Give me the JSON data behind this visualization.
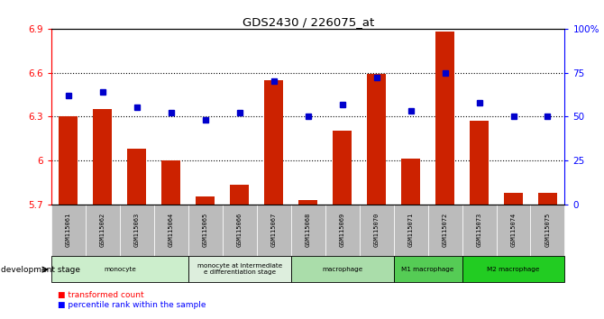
{
  "title": "GDS2430 / 226075_at",
  "samples": [
    "GSM115061",
    "GSM115062",
    "GSM115063",
    "GSM115064",
    "GSM115065",
    "GSM115066",
    "GSM115067",
    "GSM115068",
    "GSM115069",
    "GSM115070",
    "GSM115071",
    "GSM115072",
    "GSM115073",
    "GSM115074",
    "GSM115075"
  ],
  "red_values": [
    6.3,
    6.35,
    6.08,
    6.0,
    5.75,
    5.83,
    6.55,
    5.73,
    6.2,
    6.59,
    6.01,
    6.88,
    6.27,
    5.78,
    5.78
  ],
  "blue_values": [
    62,
    64,
    55,
    52,
    48,
    52,
    70,
    50,
    57,
    72,
    53,
    75,
    58,
    50,
    50
  ],
  "ylim_left": [
    5.7,
    6.9
  ],
  "ylim_right": [
    0,
    100
  ],
  "yticks_left": [
    5.7,
    6.0,
    6.3,
    6.6,
    6.9
  ],
  "ytick_labels_left": [
    "5.7",
    "6",
    "6.3",
    "6.6",
    "6.9"
  ],
  "yticks_right": [
    0,
    25,
    50,
    75,
    100
  ],
  "ytick_labels_right": [
    "0",
    "25",
    "50",
    "75",
    "100%"
  ],
  "grid_vals": [
    6.0,
    6.3,
    6.6
  ],
  "bar_color": "#cc2200",
  "dot_color": "#0000cc",
  "stage_configs": [
    {
      "label": "monocyte",
      "start": 0,
      "end": 3,
      "color": "#cceecc"
    },
    {
      "label": "monocyte at intermediate\ne differentiation stage",
      "start": 4,
      "end": 6,
      "color": "#ddeedd"
    },
    {
      "label": "macrophage",
      "start": 7,
      "end": 9,
      "color": "#aaddaa"
    },
    {
      "label": "M1 macrophage",
      "start": 10,
      "end": 11,
      "color": "#55cc55"
    },
    {
      "label": "M2 macrophage",
      "start": 12,
      "end": 14,
      "color": "#22cc22"
    }
  ],
  "sample_box_color": "#bbbbbb",
  "legend_red": "transformed count",
  "legend_blue": "percentile rank within the sample",
  "dev_stage_label": "development stage"
}
